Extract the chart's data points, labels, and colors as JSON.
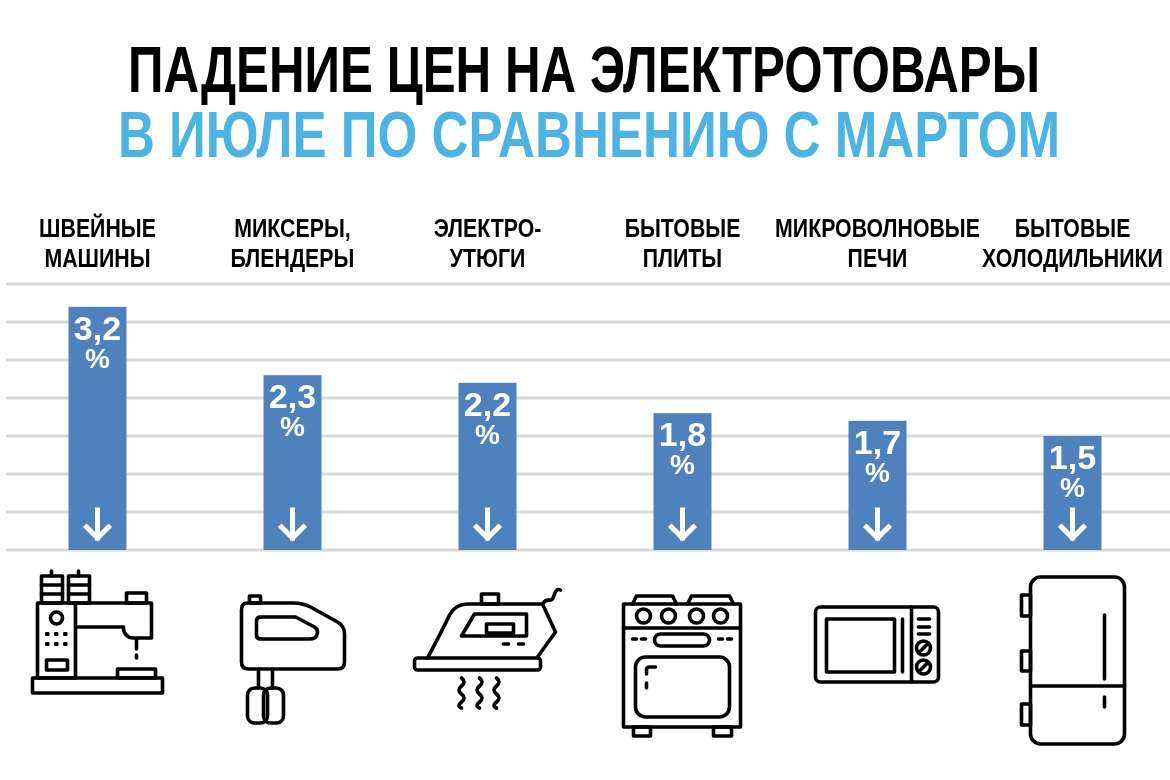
{
  "chart_data": {
    "type": "bar",
    "title": "ПАДЕНИЕ ЦЕН НА ЭЛЕКТРОТОВАРЫ",
    "subtitle": "В ИЮЛЕ ПО СРАВНЕНИЮ С МАРТОМ",
    "categories": [
      "ШВЕЙНЫЕ МАШИНЫ",
      "МИКСЕРЫ, БЛЕНДЕРЫ",
      "ЭЛЕКТРО-УТЮГИ",
      "БЫТОВЫЕ ПЛИТЫ",
      "МИКРОВОЛНОВЫЕ ПЕЧИ",
      "БЫТОВЫЕ ХОЛОДИЛЬНИКИ"
    ],
    "values": [
      3.2,
      2.3,
      2.2,
      1.8,
      1.7,
      1.5
    ],
    "value_labels": [
      "3,2 %",
      "2,3 %",
      "2,2 %",
      "1,8 %",
      "1,7 %",
      "1,5 %"
    ],
    "color": "#4f81bd",
    "ylim": [
      0,
      3.5
    ],
    "yticks": [
      {
        "value": 0,
        "label": null
      },
      {
        "value": 0.5,
        "label": null
      },
      {
        "value": 1,
        "label": null
      },
      {
        "value": 1.5,
        "label": null
      },
      {
        "value": 2,
        "label": null
      },
      {
        "value": 2.5,
        "label": null
      },
      {
        "value": 3,
        "label": null
      },
      {
        "value": 3.5,
        "label": null
      }
    ],
    "grid": "y",
    "tick_labels": "x"
  }
}
